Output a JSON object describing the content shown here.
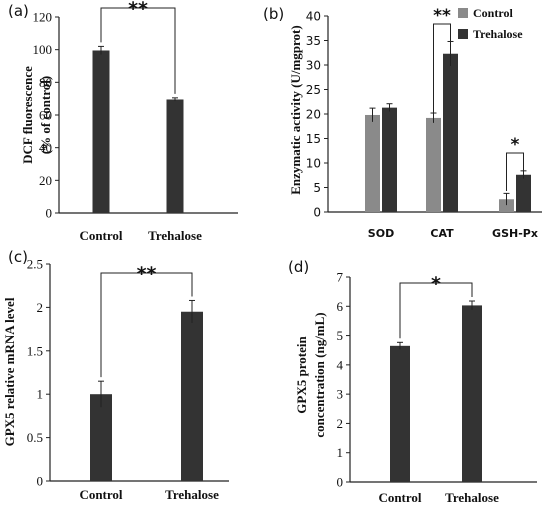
{
  "colors": {
    "dark_bar": "#333333",
    "light_bar": "#8a8a8a",
    "axis": "#222222",
    "text": "#111111"
  },
  "chart_data": [
    {
      "panel_label": "(a)",
      "type": "bar",
      "categories": [
        "Control",
        "Trehalose"
      ],
      "values": [
        99.5,
        69.5
      ],
      "errors": [
        2.5,
        1.0
      ],
      "ylabel": "DCF  fluorescence",
      "ylabel2": "(% of control)",
      "ylim": [
        0,
        120
      ],
      "yticks": [
        "0",
        "20",
        "40",
        "60",
        "80",
        "100",
        "120"
      ],
      "significance": [
        {
          "between": [
            "Control",
            "Trehalose"
          ],
          "label": "**"
        }
      ],
      "grid": false
    },
    {
      "panel_label": "(b)",
      "type": "bar",
      "categories": [
        "SOD",
        "CAT",
        "GSH-Px"
      ],
      "series": [
        {
          "name": "Control",
          "values": [
            19.8,
            19.2,
            2.6
          ],
          "errors": [
            1.4,
            1.0,
            1.2
          ]
        },
        {
          "name": "Trehalose",
          "values": [
            21.3,
            32.3,
            7.6
          ],
          "errors": [
            0.8,
            2.5,
            0.8
          ]
        }
      ],
      "ylabel": "Enzymatic activity (U/mgprot)",
      "ylim": [
        0,
        40
      ],
      "yticks": [
        "0",
        "5",
        "10",
        "15",
        "20",
        "25",
        "30",
        "35",
        "40"
      ],
      "significance": [
        {
          "category": "CAT",
          "label": "**"
        },
        {
          "category": "GSH-Px",
          "label": "*"
        }
      ],
      "legend_position": "top-right",
      "grid": false
    },
    {
      "panel_label": "(c)",
      "type": "bar",
      "categories": [
        "Control",
        "Trehalose"
      ],
      "values": [
        1.0,
        1.95
      ],
      "errors": [
        0.15,
        0.13
      ],
      "ylabel": "GPX5 relative mRNA level",
      "ylim": [
        0,
        2.5
      ],
      "yticks": [
        "0",
        "0.5",
        "1",
        "1.5",
        "2",
        "2.5"
      ],
      "significance": [
        {
          "between": [
            "Control",
            "Trehalose"
          ],
          "label": "**"
        }
      ],
      "grid": false
    },
    {
      "panel_label": "(d)",
      "type": "bar",
      "categories": [
        "Control",
        "Trehalose"
      ],
      "values": [
        4.65,
        6.03
      ],
      "errors": [
        0.12,
        0.15
      ],
      "ylabel": "GPX5 protein",
      "ylabel2": "concentration (ng/mL)",
      "ylim": [
        0,
        7
      ],
      "yticks": [
        "0",
        "1",
        "2",
        "3",
        "4",
        "5",
        "6",
        "7"
      ],
      "significance": [
        {
          "between": [
            "Control",
            "Trehalose"
          ],
          "label": "*"
        }
      ],
      "grid": false
    }
  ]
}
